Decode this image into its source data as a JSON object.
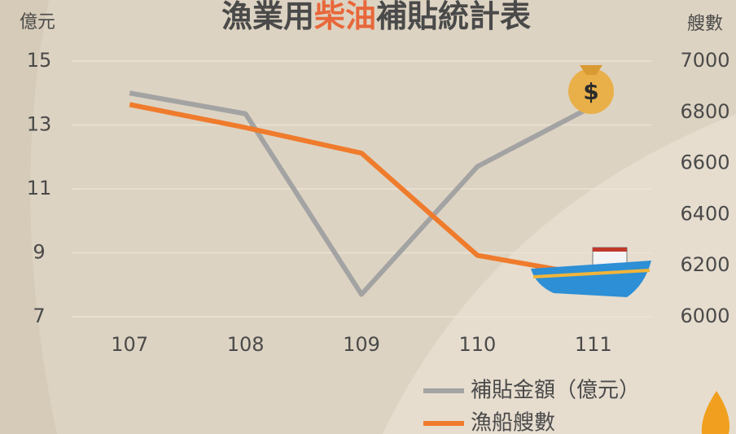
{
  "chart_data": {
    "type": "line",
    "title": [
      {
        "text": "漁業用",
        "color": "#4a4a4a"
      },
      {
        "text": "柴油",
        "color": "#e8673a"
      },
      {
        "text": "補貼統計表",
        "color": "#4a4a4a"
      }
    ],
    "y_label": "億元",
    "y2_label": "艘數",
    "categories": [
      "107",
      "108",
      "109",
      "110",
      "111"
    ],
    "series": [
      {
        "name": "補貼金額（億元）",
        "color": "#a3a3a3",
        "values": [
          14.0,
          13.35,
          7.7,
          11.7,
          13.6
        ]
      },
      {
        "name": "漁船艘數",
        "color": "#ef7b2c",
        "axis": "y2",
        "values": [
          6830,
          6740,
          6640,
          6240,
          6160
        ]
      }
    ],
    "ylim": [
      7,
      15
    ],
    "yticks": [
      7,
      9,
      11,
      13,
      15
    ],
    "y2lim": [
      6000,
      7000
    ],
    "y2ticks": [
      6000,
      6200,
      6400,
      6600,
      6800,
      7000
    ],
    "grid": true
  }
}
